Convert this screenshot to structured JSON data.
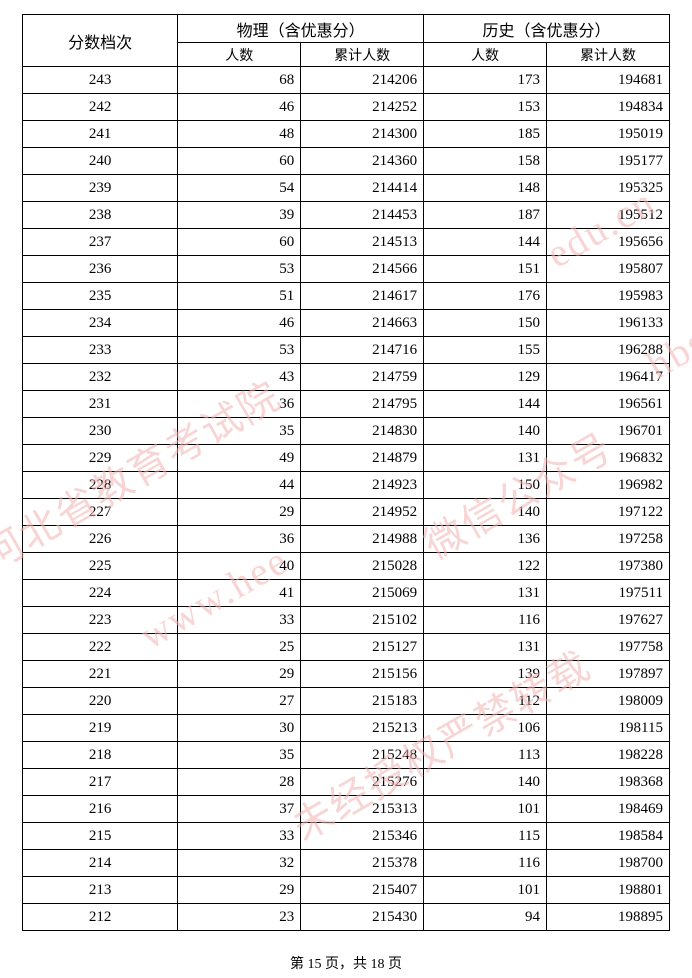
{
  "header": {
    "score_label": "分数档次",
    "physics_group": "物理（含优惠分）",
    "history_group": "历史（含优惠分）",
    "count_label": "人数",
    "cumulative_label": "累计人数"
  },
  "colors": {
    "background": "#ffffff",
    "border": "#000000",
    "text": "#000000",
    "watermark": "#f4b4b4"
  },
  "rows": [
    {
      "score": "243",
      "p_n": "68",
      "p_c": "214206",
      "h_n": "173",
      "h_c": "194681"
    },
    {
      "score": "242",
      "p_n": "46",
      "p_c": "214252",
      "h_n": "153",
      "h_c": "194834"
    },
    {
      "score": "241",
      "p_n": "48",
      "p_c": "214300",
      "h_n": "185",
      "h_c": "195019"
    },
    {
      "score": "240",
      "p_n": "60",
      "p_c": "214360",
      "h_n": "158",
      "h_c": "195177"
    },
    {
      "score": "239",
      "p_n": "54",
      "p_c": "214414",
      "h_n": "148",
      "h_c": "195325"
    },
    {
      "score": "238",
      "p_n": "39",
      "p_c": "214453",
      "h_n": "187",
      "h_c": "195512"
    },
    {
      "score": "237",
      "p_n": "60",
      "p_c": "214513",
      "h_n": "144",
      "h_c": "195656"
    },
    {
      "score": "236",
      "p_n": "53",
      "p_c": "214566",
      "h_n": "151",
      "h_c": "195807"
    },
    {
      "score": "235",
      "p_n": "51",
      "p_c": "214617",
      "h_n": "176",
      "h_c": "195983"
    },
    {
      "score": "234",
      "p_n": "46",
      "p_c": "214663",
      "h_n": "150",
      "h_c": "196133"
    },
    {
      "score": "233",
      "p_n": "53",
      "p_c": "214716",
      "h_n": "155",
      "h_c": "196288"
    },
    {
      "score": "232",
      "p_n": "43",
      "p_c": "214759",
      "h_n": "129",
      "h_c": "196417"
    },
    {
      "score": "231",
      "p_n": "36",
      "p_c": "214795",
      "h_n": "144",
      "h_c": "196561"
    },
    {
      "score": "230",
      "p_n": "35",
      "p_c": "214830",
      "h_n": "140",
      "h_c": "196701"
    },
    {
      "score": "229",
      "p_n": "49",
      "p_c": "214879",
      "h_n": "131",
      "h_c": "196832"
    },
    {
      "score": "228",
      "p_n": "44",
      "p_c": "214923",
      "h_n": "150",
      "h_c": "196982"
    },
    {
      "score": "227",
      "p_n": "29",
      "p_c": "214952",
      "h_n": "140",
      "h_c": "197122"
    },
    {
      "score": "226",
      "p_n": "36",
      "p_c": "214988",
      "h_n": "136",
      "h_c": "197258"
    },
    {
      "score": "225",
      "p_n": "40",
      "p_c": "215028",
      "h_n": "122",
      "h_c": "197380"
    },
    {
      "score": "224",
      "p_n": "41",
      "p_c": "215069",
      "h_n": "131",
      "h_c": "197511"
    },
    {
      "score": "223",
      "p_n": "33",
      "p_c": "215102",
      "h_n": "116",
      "h_c": "197627"
    },
    {
      "score": "222",
      "p_n": "25",
      "p_c": "215127",
      "h_n": "131",
      "h_c": "197758"
    },
    {
      "score": "221",
      "p_n": "29",
      "p_c": "215156",
      "h_n": "139",
      "h_c": "197897"
    },
    {
      "score": "220",
      "p_n": "27",
      "p_c": "215183",
      "h_n": "112",
      "h_c": "198009"
    },
    {
      "score": "219",
      "p_n": "30",
      "p_c": "215213",
      "h_n": "106",
      "h_c": "198115"
    },
    {
      "score": "218",
      "p_n": "35",
      "p_c": "215248",
      "h_n": "113",
      "h_c": "198228"
    },
    {
      "score": "217",
      "p_n": "28",
      "p_c": "215276",
      "h_n": "140",
      "h_c": "198368"
    },
    {
      "score": "216",
      "p_n": "37",
      "p_c": "215313",
      "h_n": "101",
      "h_c": "198469"
    },
    {
      "score": "215",
      "p_n": "33",
      "p_c": "215346",
      "h_n": "115",
      "h_c": "198584"
    },
    {
      "score": "214",
      "p_n": "32",
      "p_c": "215378",
      "h_n": "116",
      "h_c": "198700"
    },
    {
      "score": "213",
      "p_n": "29",
      "p_c": "215407",
      "h_n": "101",
      "h_c": "198801"
    },
    {
      "score": "212",
      "p_n": "23",
      "p_c": "215430",
      "h_n": "94",
      "h_c": "198895"
    }
  ],
  "footer": {
    "text": "第 15 页，共 18 页"
  },
  "watermarks": {
    "a": "河北省教育考试院",
    "b": "www.hee",
    "c": "微信公众号",
    "d": "edu.cn",
    "e": "未经授权严禁转载",
    "f": "hbsksy"
  }
}
